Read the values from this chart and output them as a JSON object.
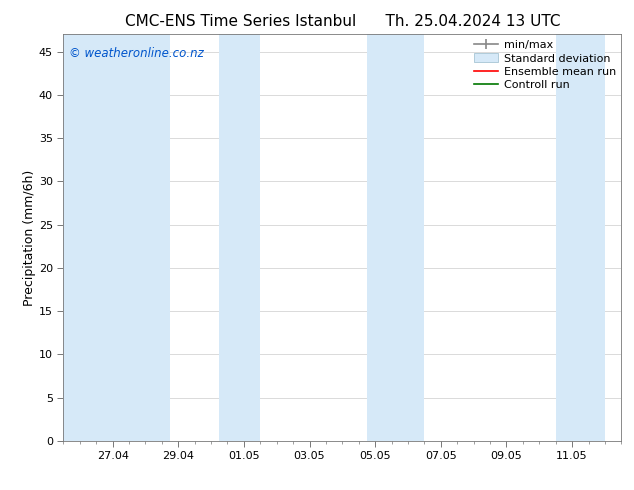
{
  "title_left": "CMC-ENS Time Series Istanbul",
  "title_right": "Th. 25.04.2024 13 UTC",
  "ylabel": "Precipitation (mm/6h)",
  "watermark": "© weatheronline.co.nz",
  "watermark_color": "#0055cc",
  "background_color": "#ffffff",
  "plot_bg_color": "#ffffff",
  "ylim": [
    0,
    47
  ],
  "yticks": [
    0,
    5,
    10,
    15,
    20,
    25,
    30,
    35,
    40,
    45
  ],
  "shaded_bands": [
    {
      "x_start": 25.5,
      "x_end": 28.75
    },
    {
      "x_start": 30.25,
      "x_end": 31.5
    },
    {
      "x_start": 34.75,
      "x_end": 36.5
    },
    {
      "x_start": 40.5,
      "x_end": 42.0
    }
  ],
  "shade_color": "#d6e9f8",
  "legend_entries": [
    {
      "label": "min/max",
      "color": "#999999",
      "style": "errorbar"
    },
    {
      "label": "Standard deviation",
      "color": "#d6e9f8",
      "style": "bar"
    },
    {
      "label": "Ensemble mean run",
      "color": "#ff0000",
      "style": "line"
    },
    {
      "label": "Controll run",
      "color": "#008800",
      "style": "line"
    }
  ],
  "x_tick_labels": [
    "27.04",
    "29.04",
    "01.05",
    "03.05",
    "05.05",
    "07.05",
    "09.05",
    "11.05"
  ],
  "x_tick_positions_days": [
    27,
    29,
    31,
    33,
    35,
    37,
    39,
    41
  ],
  "xlim_days": [
    25.5,
    42.5
  ],
  "title_fontsize": 11,
  "tick_label_fontsize": 8,
  "ylabel_fontsize": 9,
  "legend_fontsize": 8
}
